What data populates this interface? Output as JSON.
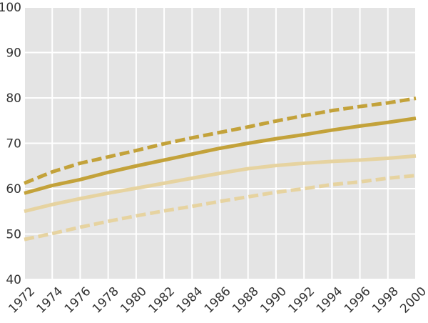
{
  "chart_data": {
    "type": "line",
    "title": "",
    "xlabel": "",
    "ylabel": "",
    "xlim": [
      1972,
      2000
    ],
    "ylim": [
      40,
      100
    ],
    "grid": true,
    "legend": "none",
    "x_ticks": [
      "1972",
      "1974",
      "1976",
      "1978",
      "1980",
      "1982",
      "1984",
      "1986",
      "1988",
      "1990",
      "1992",
      "1994",
      "1996",
      "1998",
      "2000"
    ],
    "y_ticks": [
      "40",
      "50",
      "60",
      "70",
      "80",
      "90",
      "100"
    ],
    "x": [
      1972,
      1974,
      1976,
      1978,
      1980,
      1982,
      1984,
      1986,
      1988,
      1990,
      1992,
      1994,
      1996,
      1998,
      2000
    ],
    "series": [
      {
        "color": "#c3a23a",
        "dash": true,
        "values": [
          61.2,
          63.7,
          65.6,
          67.0,
          68.4,
          69.9,
          71.2,
          72.4,
          73.6,
          74.9,
          76.1,
          77.2,
          78.1,
          78.9,
          79.9
        ]
      },
      {
        "color": "#c3a23a",
        "dash": false,
        "values": [
          59.0,
          60.7,
          62.0,
          63.6,
          65.0,
          66.3,
          67.6,
          68.9,
          70.0,
          71.0,
          71.9,
          72.9,
          73.8,
          74.6,
          75.5
        ]
      },
      {
        "color": "#e6d3a0",
        "dash": false,
        "values": [
          55.0,
          56.5,
          57.8,
          59.0,
          60.1,
          61.2,
          62.3,
          63.4,
          64.4,
          65.1,
          65.6,
          66.0,
          66.3,
          66.7,
          67.2
        ]
      },
      {
        "color": "#e6d3a0",
        "dash": true,
        "values": [
          48.8,
          50.1,
          51.5,
          52.8,
          54.0,
          55.1,
          56.1,
          57.2,
          58.2,
          59.2,
          60.0,
          60.9,
          61.5,
          62.3,
          62.9
        ]
      }
    ]
  }
}
